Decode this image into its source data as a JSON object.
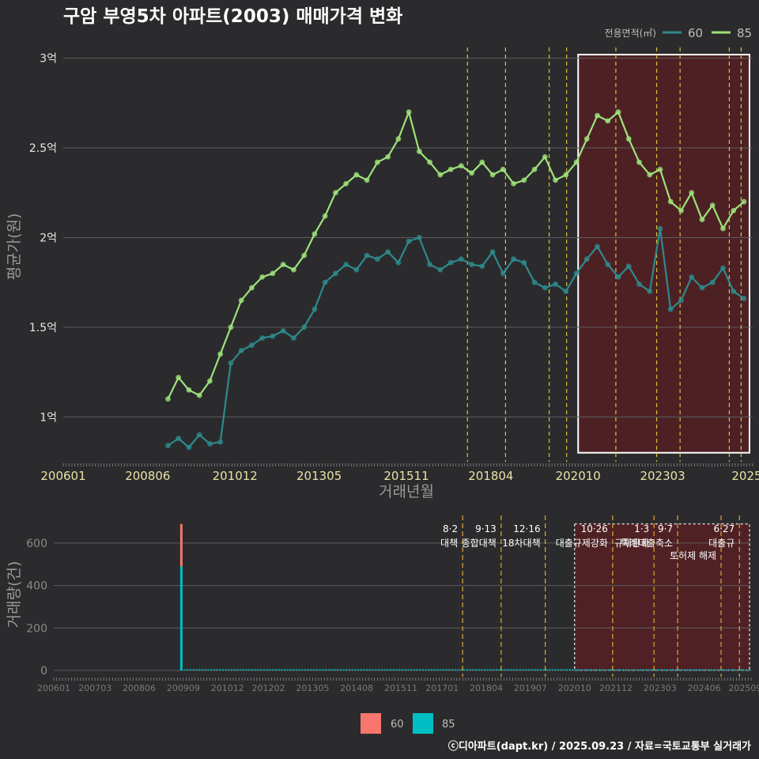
{
  "chart_data": [
    {
      "type": "scatter",
      "title": "구암 부영5차 아파트(2003) 매매가격 변화",
      "xlabel": "거래년월",
      "ylabel": "평균가(원)",
      "legend_title": "전용면적(㎡)",
      "legend_position": "top-right",
      "y_ticks": [
        {
          "value": 1.0,
          "label": "1억"
        },
        {
          "value": 1.5,
          "label": "1.5억"
        },
        {
          "value": 2.0,
          "label": "2억"
        },
        {
          "value": 2.5,
          "label": "2.5억"
        },
        {
          "value": 3.0,
          "label": "3억"
        }
      ],
      "ylim": [
        0.75,
        3.06
      ],
      "xlim": [
        2006.0,
        2025.75
      ],
      "x_ticks": [
        {
          "value": 2006.0,
          "label": "200601"
        },
        {
          "value": 2008.42,
          "label": "200806"
        },
        {
          "value": 2010.92,
          "label": "201012"
        },
        {
          "value": 2013.33,
          "label": "201305"
        },
        {
          "value": 2015.83,
          "label": "201511"
        },
        {
          "value": 2018.25,
          "label": "201804"
        },
        {
          "value": 2020.75,
          "label": "202010"
        },
        {
          "value": 2023.17,
          "label": "202303"
        },
        {
          "value": 2025.58,
          "label": "2025"
        }
      ],
      "highlight_range": [
        2020.75,
        2025.75
      ],
      "policy_lines": [
        2017.58,
        2018.67,
        2019.92,
        2020.42,
        2021.83,
        2023.0,
        2023.67,
        2025.08,
        2025.42
      ],
      "series": [
        {
          "name": "60",
          "color": "#2e8a8c",
          "x": [
            2009.0,
            2009.3,
            2009.6,
            2009.9,
            2010.2,
            2010.5,
            2010.8,
            2011.1,
            2011.4,
            2011.7,
            2012.0,
            2012.3,
            2012.6,
            2012.9,
            2013.2,
            2013.5,
            2013.8,
            2014.1,
            2014.4,
            2014.7,
            2015.0,
            2015.3,
            2015.6,
            2015.9,
            2016.2,
            2016.5,
            2016.8,
            2017.1,
            2017.4,
            2017.7,
            2018.0,
            2018.3,
            2018.6,
            2018.9,
            2019.2,
            2019.5,
            2019.8,
            2020.1,
            2020.4,
            2020.7,
            2021.0,
            2021.3,
            2021.6,
            2021.9,
            2022.2,
            2022.5,
            2022.8,
            2023.1,
            2023.4,
            2023.7,
            2024.0,
            2024.3,
            2024.6,
            2024.9,
            2025.2,
            2025.5
          ],
          "values": [
            0.84,
            0.88,
            0.83,
            0.9,
            0.85,
            0.86,
            1.3,
            1.37,
            1.4,
            1.44,
            1.45,
            1.48,
            1.44,
            1.5,
            1.6,
            1.75,
            1.8,
            1.85,
            1.82,
            1.9,
            1.88,
            1.92,
            1.86,
            1.98,
            2.0,
            1.85,
            1.82,
            1.86,
            1.88,
            1.85,
            1.84,
            1.92,
            1.8,
            1.88,
            1.86,
            1.75,
            1.72,
            1.74,
            1.7,
            1.8,
            1.88,
            1.95,
            1.85,
            1.78,
            1.84,
            1.74,
            1.7,
            2.05,
            1.6,
            1.65,
            1.78,
            1.72,
            1.75,
            1.83,
            1.7,
            1.66
          ]
        },
        {
          "name": "85",
          "color": "#9ee27a",
          "x": [
            2009.0,
            2009.3,
            2009.6,
            2009.9,
            2010.2,
            2010.5,
            2010.8,
            2011.1,
            2011.4,
            2011.7,
            2012.0,
            2012.3,
            2012.6,
            2012.9,
            2013.2,
            2013.5,
            2013.8,
            2014.1,
            2014.4,
            2014.7,
            2015.0,
            2015.3,
            2015.6,
            2015.9,
            2016.2,
            2016.5,
            2016.8,
            2017.1,
            2017.4,
            2017.7,
            2018.0,
            2018.3,
            2018.6,
            2018.9,
            2019.2,
            2019.5,
            2019.8,
            2020.1,
            2020.4,
            2020.7,
            2021.0,
            2021.3,
            2021.6,
            2021.9,
            2022.2,
            2022.5,
            2022.8,
            2023.1,
            2023.4,
            2023.7,
            2024.0,
            2024.3,
            2024.6,
            2024.9,
            2025.2,
            2025.5
          ],
          "values": [
            1.1,
            1.22,
            1.15,
            1.12,
            1.2,
            1.35,
            1.5,
            1.65,
            1.72,
            1.78,
            1.8,
            1.85,
            1.82,
            1.9,
            2.02,
            2.12,
            2.25,
            2.3,
            2.35,
            2.32,
            2.42,
            2.45,
            2.55,
            2.7,
            2.48,
            2.42,
            2.35,
            2.38,
            2.4,
            2.36,
            2.42,
            2.35,
            2.38,
            2.3,
            2.32,
            2.38,
            2.45,
            2.32,
            2.35,
            2.42,
            2.55,
            2.68,
            2.65,
            2.7,
            2.55,
            2.42,
            2.35,
            2.38,
            2.2,
            2.15,
            2.25,
            2.1,
            2.18,
            2.05,
            2.15,
            2.2
          ]
        }
      ]
    },
    {
      "type": "bar",
      "ylabel": "거래량(건)",
      "ylim": [
        0,
        700
      ],
      "y_ticks": [
        {
          "value": 0,
          "label": "0"
        },
        {
          "value": 200,
          "label": "200"
        },
        {
          "value": 400,
          "label": "400"
        },
        {
          "value": 600,
          "label": "600"
        }
      ],
      "xlim": [
        2006.0,
        2025.75
      ],
      "x_ticks": [
        {
          "value": 2006.0,
          "label": "200601"
        },
        {
          "value": 2007.17,
          "label": "200703"
        },
        {
          "value": 2008.42,
          "label": "200806"
        },
        {
          "value": 2009.67,
          "label": "200909"
        },
        {
          "value": 2010.92,
          "label": "201012"
        },
        {
          "value": 2012.08,
          "label": "201202"
        },
        {
          "value": 2013.33,
          "label": "201305"
        },
        {
          "value": 2014.58,
          "label": "201408"
        },
        {
          "value": 2015.83,
          "label": "201511"
        },
        {
          "value": 2017.0,
          "label": "201701"
        },
        {
          "value": 2018.25,
          "label": "201804"
        },
        {
          "value": 2019.5,
          "label": "201907"
        },
        {
          "value": 2020.75,
          "label": "202010"
        },
        {
          "value": 2021.92,
          "label": "202112"
        },
        {
          "value": 2023.17,
          "label": "202303"
        },
        {
          "value": 2024.42,
          "label": "202406"
        },
        {
          "value": 2025.58,
          "label": "202509"
        }
      ],
      "highlight_range": [
        2020.75,
        2025.75
      ],
      "legend_position": "bottom",
      "legend": [
        {
          "name": "60",
          "color": "#f8766d"
        },
        {
          "name": "85",
          "color": "#00bfc4"
        }
      ],
      "spike": {
        "x": 2009.58,
        "value_85": 490,
        "value_60": 200
      },
      "baseline_bars": {
        "x_start": 2009.6,
        "x_end": 2025.7,
        "value": 6
      },
      "annotations": [
        {
          "x": 2017.58,
          "date": "8·2",
          "text": "대책"
        },
        {
          "x": 2018.67,
          "date": "9·13",
          "text": "종합대책"
        },
        {
          "x": 2019.92,
          "date": "12·16",
          "text": "18차대책"
        },
        {
          "x": 2021.83,
          "date": "10·26",
          "text": "대출규제강화"
        },
        {
          "x": 2023.0,
          "date": "1·3",
          "text": "규제완화"
        },
        {
          "x": 2023.67,
          "date": "9·7",
          "text": "특례대출축소"
        },
        {
          "x": 2024.9,
          "date": "",
          "text": "토허제 해제"
        },
        {
          "x": 2025.42,
          "date": "6·27",
          "text": "대출규"
        }
      ]
    }
  ],
  "footer": {
    "credit": "ⓒ디아파트(dapt.kr) / 2025.09.23 / 자료=국토교통부 실거래가"
  }
}
